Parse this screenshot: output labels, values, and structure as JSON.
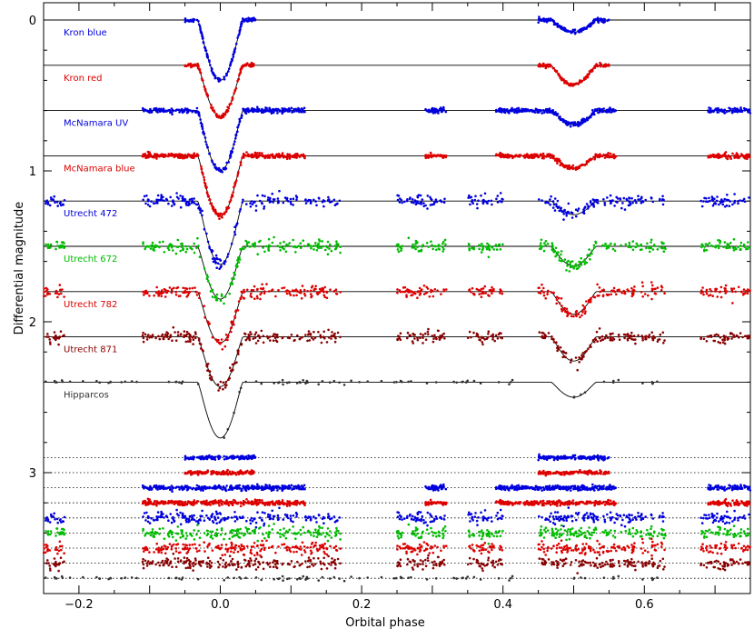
{
  "chart_data": {
    "type": "scatter",
    "title": "",
    "xlabel": "Orbital phase",
    "ylabel": "Differential magnitude",
    "xlim": [
      -0.25,
      0.75
    ],
    "ylim": [
      0,
      3.75
    ],
    "y_inverted": true,
    "grid": false,
    "x_ticks": [
      -0.2,
      0.0,
      0.2,
      0.4,
      0.6
    ],
    "x_tick_labels": [
      "−0.2",
      "0.0",
      "0.2",
      "0.4",
      "0.6"
    ],
    "y_ticks": [
      0,
      1,
      2,
      3
    ],
    "y_tick_labels": [
      "0",
      "1",
      "2",
      "3"
    ],
    "eclipse": {
      "primary_center": 0.0,
      "secondary_center": 0.5
    },
    "series": [
      {
        "name": "Kron blue",
        "color": "#0000dd",
        "offset": 0.0,
        "primary_depth": 0.4,
        "secondary_depth": 0.08,
        "residual_offset": 2.9,
        "scatter": 0.006,
        "phase_ranges": [
          [
            -0.05,
            0.05
          ],
          [
            0.45,
            0.55
          ]
        ]
      },
      {
        "name": "Kron red",
        "color": "#dd0000",
        "offset": 0.3,
        "primary_depth": 0.34,
        "secondary_depth": 0.13,
        "residual_offset": 3.0,
        "scatter": 0.006,
        "phase_ranges": [
          [
            -0.05,
            0.05
          ],
          [
            0.45,
            0.55
          ]
        ]
      },
      {
        "name": "McNamara UV",
        "color": "#0000dd",
        "offset": 0.6,
        "primary_depth": 0.4,
        "secondary_depth": 0.09,
        "residual_offset": 3.1,
        "scatter": 0.008,
        "phase_ranges": [
          [
            -0.11,
            0.12
          ],
          [
            0.29,
            0.32
          ],
          [
            0.39,
            0.56
          ],
          [
            0.69,
            0.75
          ]
        ]
      },
      {
        "name": "McNamara blue",
        "color": "#dd0000",
        "offset": 0.9,
        "primary_depth": 0.4,
        "secondary_depth": 0.08,
        "residual_offset": 3.2,
        "scatter": 0.008,
        "phase_ranges": [
          [
            -0.11,
            0.12
          ],
          [
            0.29,
            0.32
          ],
          [
            0.39,
            0.56
          ],
          [
            0.69,
            0.75
          ]
        ]
      },
      {
        "name": "Utrecht 472",
        "color": "#0000dd",
        "offset": 1.2,
        "primary_depth": 0.42,
        "secondary_depth": 0.09,
        "residual_offset": 3.3,
        "scatter": 0.02,
        "phase_ranges": [
          [
            -0.25,
            -0.22
          ],
          [
            -0.11,
            0.17
          ],
          [
            0.25,
            0.32
          ],
          [
            0.35,
            0.4
          ],
          [
            0.45,
            0.63
          ],
          [
            0.68,
            0.75
          ]
        ]
      },
      {
        "name": "Utrecht 672",
        "color": "#00bb00",
        "offset": 1.5,
        "primary_depth": 0.35,
        "secondary_depth": 0.13,
        "residual_offset": 3.4,
        "scatter": 0.02,
        "phase_ranges": [
          [
            -0.25,
            -0.22
          ],
          [
            -0.11,
            0.17
          ],
          [
            0.25,
            0.32
          ],
          [
            0.35,
            0.4
          ],
          [
            0.45,
            0.63
          ],
          [
            0.68,
            0.75
          ]
        ]
      },
      {
        "name": "Utrecht 782",
        "color": "#dd0000",
        "offset": 1.8,
        "primary_depth": 0.34,
        "secondary_depth": 0.15,
        "residual_offset": 3.5,
        "scatter": 0.02,
        "phase_ranges": [
          [
            -0.25,
            -0.22
          ],
          [
            -0.11,
            0.17
          ],
          [
            0.25,
            0.32
          ],
          [
            0.35,
            0.4
          ],
          [
            0.45,
            0.63
          ],
          [
            0.68,
            0.75
          ]
        ]
      },
      {
        "name": "Utrecht 871",
        "color": "#880000",
        "offset": 2.1,
        "primary_depth": 0.33,
        "secondary_depth": 0.16,
        "residual_offset": 3.6,
        "scatter": 0.02,
        "phase_ranges": [
          [
            -0.25,
            -0.22
          ],
          [
            -0.11,
            0.17
          ],
          [
            0.25,
            0.32
          ],
          [
            0.35,
            0.4
          ],
          [
            0.45,
            0.63
          ],
          [
            0.68,
            0.75
          ]
        ]
      },
      {
        "name": "Hipparcos",
        "color": "#333333",
        "offset": 2.4,
        "primary_depth": 0.37,
        "secondary_depth": 0.1,
        "residual_offset": 3.7,
        "scatter": 0.01,
        "sparse": true,
        "phase_ranges": [
          [
            -0.25,
            0.42
          ],
          [
            0.5,
            0.62
          ]
        ]
      }
    ]
  }
}
